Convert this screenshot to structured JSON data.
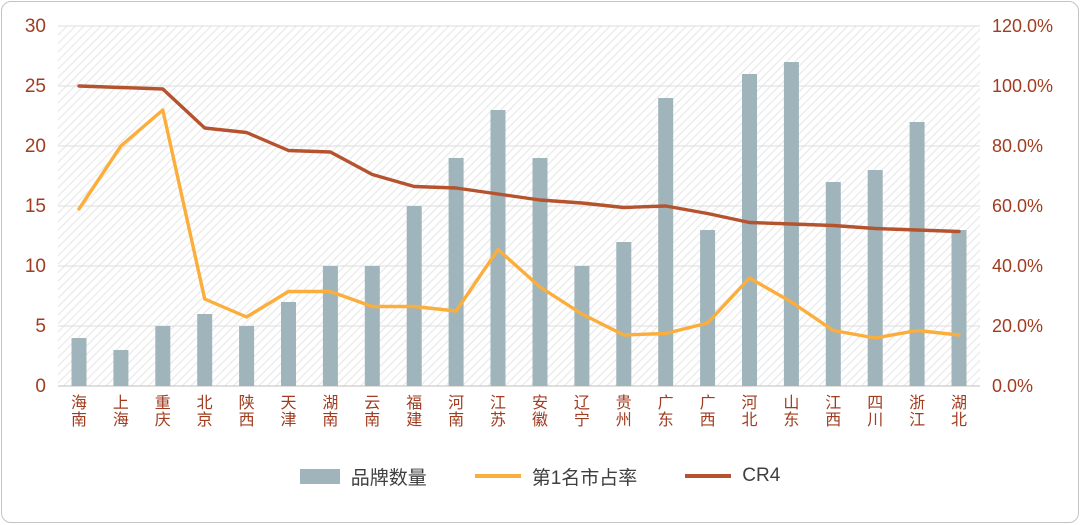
{
  "chart_data": {
    "type": "combo",
    "title": "",
    "categories": [
      "海南",
      "上海",
      "重庆",
      "北京",
      "陕西",
      "天津",
      "湖南",
      "云南",
      "福建",
      "河南",
      "江苏",
      "安徽",
      "辽宁",
      "贵州",
      "广东",
      "广西",
      "河北",
      "山东",
      "江西",
      "四川",
      "浙江",
      "湖北"
    ],
    "series": [
      {
        "name": "品牌数量",
        "type": "bar",
        "axis": "left",
        "color": "#9FB4BB",
        "values": [
          4,
          3,
          5,
          6,
          5,
          7,
          10,
          10,
          15,
          19,
          23,
          19,
          10,
          12,
          24,
          13,
          26,
          27,
          17,
          18,
          22,
          13
        ]
      },
      {
        "name": "第1名市占率",
        "type": "line",
        "axis": "right",
        "color": "#FBAE3C",
        "values_pct": [
          59,
          80,
          92,
          29,
          23,
          31.5,
          31.5,
          26.5,
          26.5,
          25,
          45.5,
          33,
          24,
          17,
          17.5,
          21,
          36,
          28,
          18.5,
          16,
          18.5,
          17
        ]
      },
      {
        "name": "CR4",
        "type": "line",
        "axis": "right",
        "color": "#B5532E",
        "values_pct": [
          100,
          99.5,
          99,
          86,
          84.5,
          78.5,
          78,
          70.5,
          66.5,
          66,
          64,
          62,
          61,
          59.5,
          60,
          57.5,
          54.5,
          54,
          53.5,
          52.5,
          52,
          51.5
        ]
      }
    ],
    "left_axis": {
      "min": 0,
      "max": 30,
      "ticks": [
        0,
        5,
        10,
        15,
        20,
        25,
        30
      ]
    },
    "right_axis": {
      "min_pct": 0,
      "max_pct": 120,
      "tick_labels": [
        "0.0%",
        "20.0%",
        "40.0%",
        "60.0%",
        "80.0%",
        "100.0%",
        "120.0%"
      ]
    },
    "grid": true,
    "legend_position": "bottom",
    "plot_background": "diagonal-hatch"
  },
  "legend": {
    "items": [
      {
        "label": "品牌数量",
        "swatch": "bar"
      },
      {
        "label": "第1名市占率",
        "swatch": "line"
      },
      {
        "label": "CR4",
        "swatch": "line"
      }
    ]
  },
  "colors": {
    "axis_text": "#A03C20",
    "gridline": "#DCDCDC",
    "baseline": "#BFBFBF",
    "hatch": "#E9E9E9",
    "frame_border": "#C4C4C4",
    "legend_text": "#3F3F3F"
  }
}
